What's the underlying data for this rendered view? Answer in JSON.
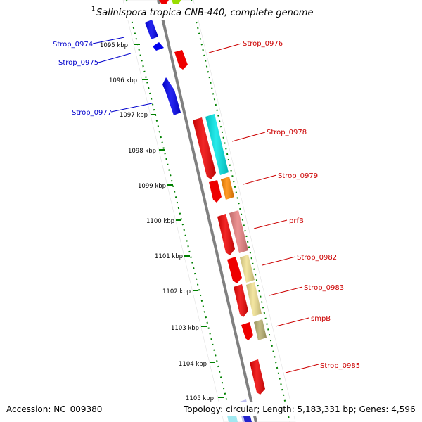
{
  "title": "Salinispora tropica CNB-440, complete genome",
  "title_superscript": "1",
  "footer": {
    "accession": "Accession: NC_009380",
    "topology": "Topology: circular; Length: 5,183,331 bp; Genes: 4,596"
  },
  "colors": {
    "forward_label": "#0000cc",
    "reverse_label": "#cc0000",
    "backbone": "#808080",
    "tick": "#008000"
  },
  "ticks": [
    "1095 kbp",
    "1096 kbp",
    "1097 kbp",
    "1098 kbp",
    "1099 kbp",
    "1100 kbp",
    "1101 kbp",
    "1102 kbp",
    "1103 kbp",
    "1104 kbp",
    "1105 kbp"
  ],
  "left_labels": [
    "Strop_0974",
    "Strop_0975",
    "Strop_0977"
  ],
  "right_labels": [
    "Strop_0976",
    "Strop_0978",
    "Strop_0979",
    "prfB",
    "Strop_0982",
    "Strop_0983",
    "smpB",
    "Strop_0985"
  ],
  "genes": [
    {
      "name": "Strop_0974",
      "color": "#0000ee",
      "strand": "forward"
    },
    {
      "name": "Strop_0975",
      "color": "#0000ee",
      "strand": "forward"
    },
    {
      "name": "Strop_0977",
      "color": "#0000ee",
      "strand": "forward"
    },
    {
      "name": "Strop_0976",
      "color": "#ee0000",
      "strand": "reverse"
    },
    {
      "name": "Strop_0978",
      "color": "#ee0000",
      "strand": "reverse"
    },
    {
      "name": "Strop_0978-cds",
      "color": "#00e5e5",
      "strand": "reverse"
    },
    {
      "name": "Strop_0979",
      "color": "#ee0000",
      "strand": "reverse"
    },
    {
      "name": "Strop_0979-cds",
      "color": "#ff8800",
      "strand": "reverse"
    },
    {
      "name": "prfB",
      "color": "#ee0000",
      "strand": "reverse"
    },
    {
      "name": "prfB-cds",
      "color": "#e88080",
      "strand": "reverse"
    },
    {
      "name": "Strop_0982",
      "color": "#ee0000",
      "strand": "reverse"
    },
    {
      "name": "Strop_0982-cds",
      "color": "#f0e090",
      "strand": "reverse"
    },
    {
      "name": "Strop_0983",
      "color": "#ee0000",
      "strand": "reverse"
    },
    {
      "name": "Strop_0983-cds",
      "color": "#f0e090",
      "strand": "reverse"
    },
    {
      "name": "smpB",
      "color": "#ee0000",
      "strand": "reverse"
    },
    {
      "name": "smpB-cds",
      "color": "#b8b070",
      "strand": "reverse"
    },
    {
      "name": "Strop_0985",
      "color": "#ee0000",
      "strand": "reverse"
    }
  ]
}
